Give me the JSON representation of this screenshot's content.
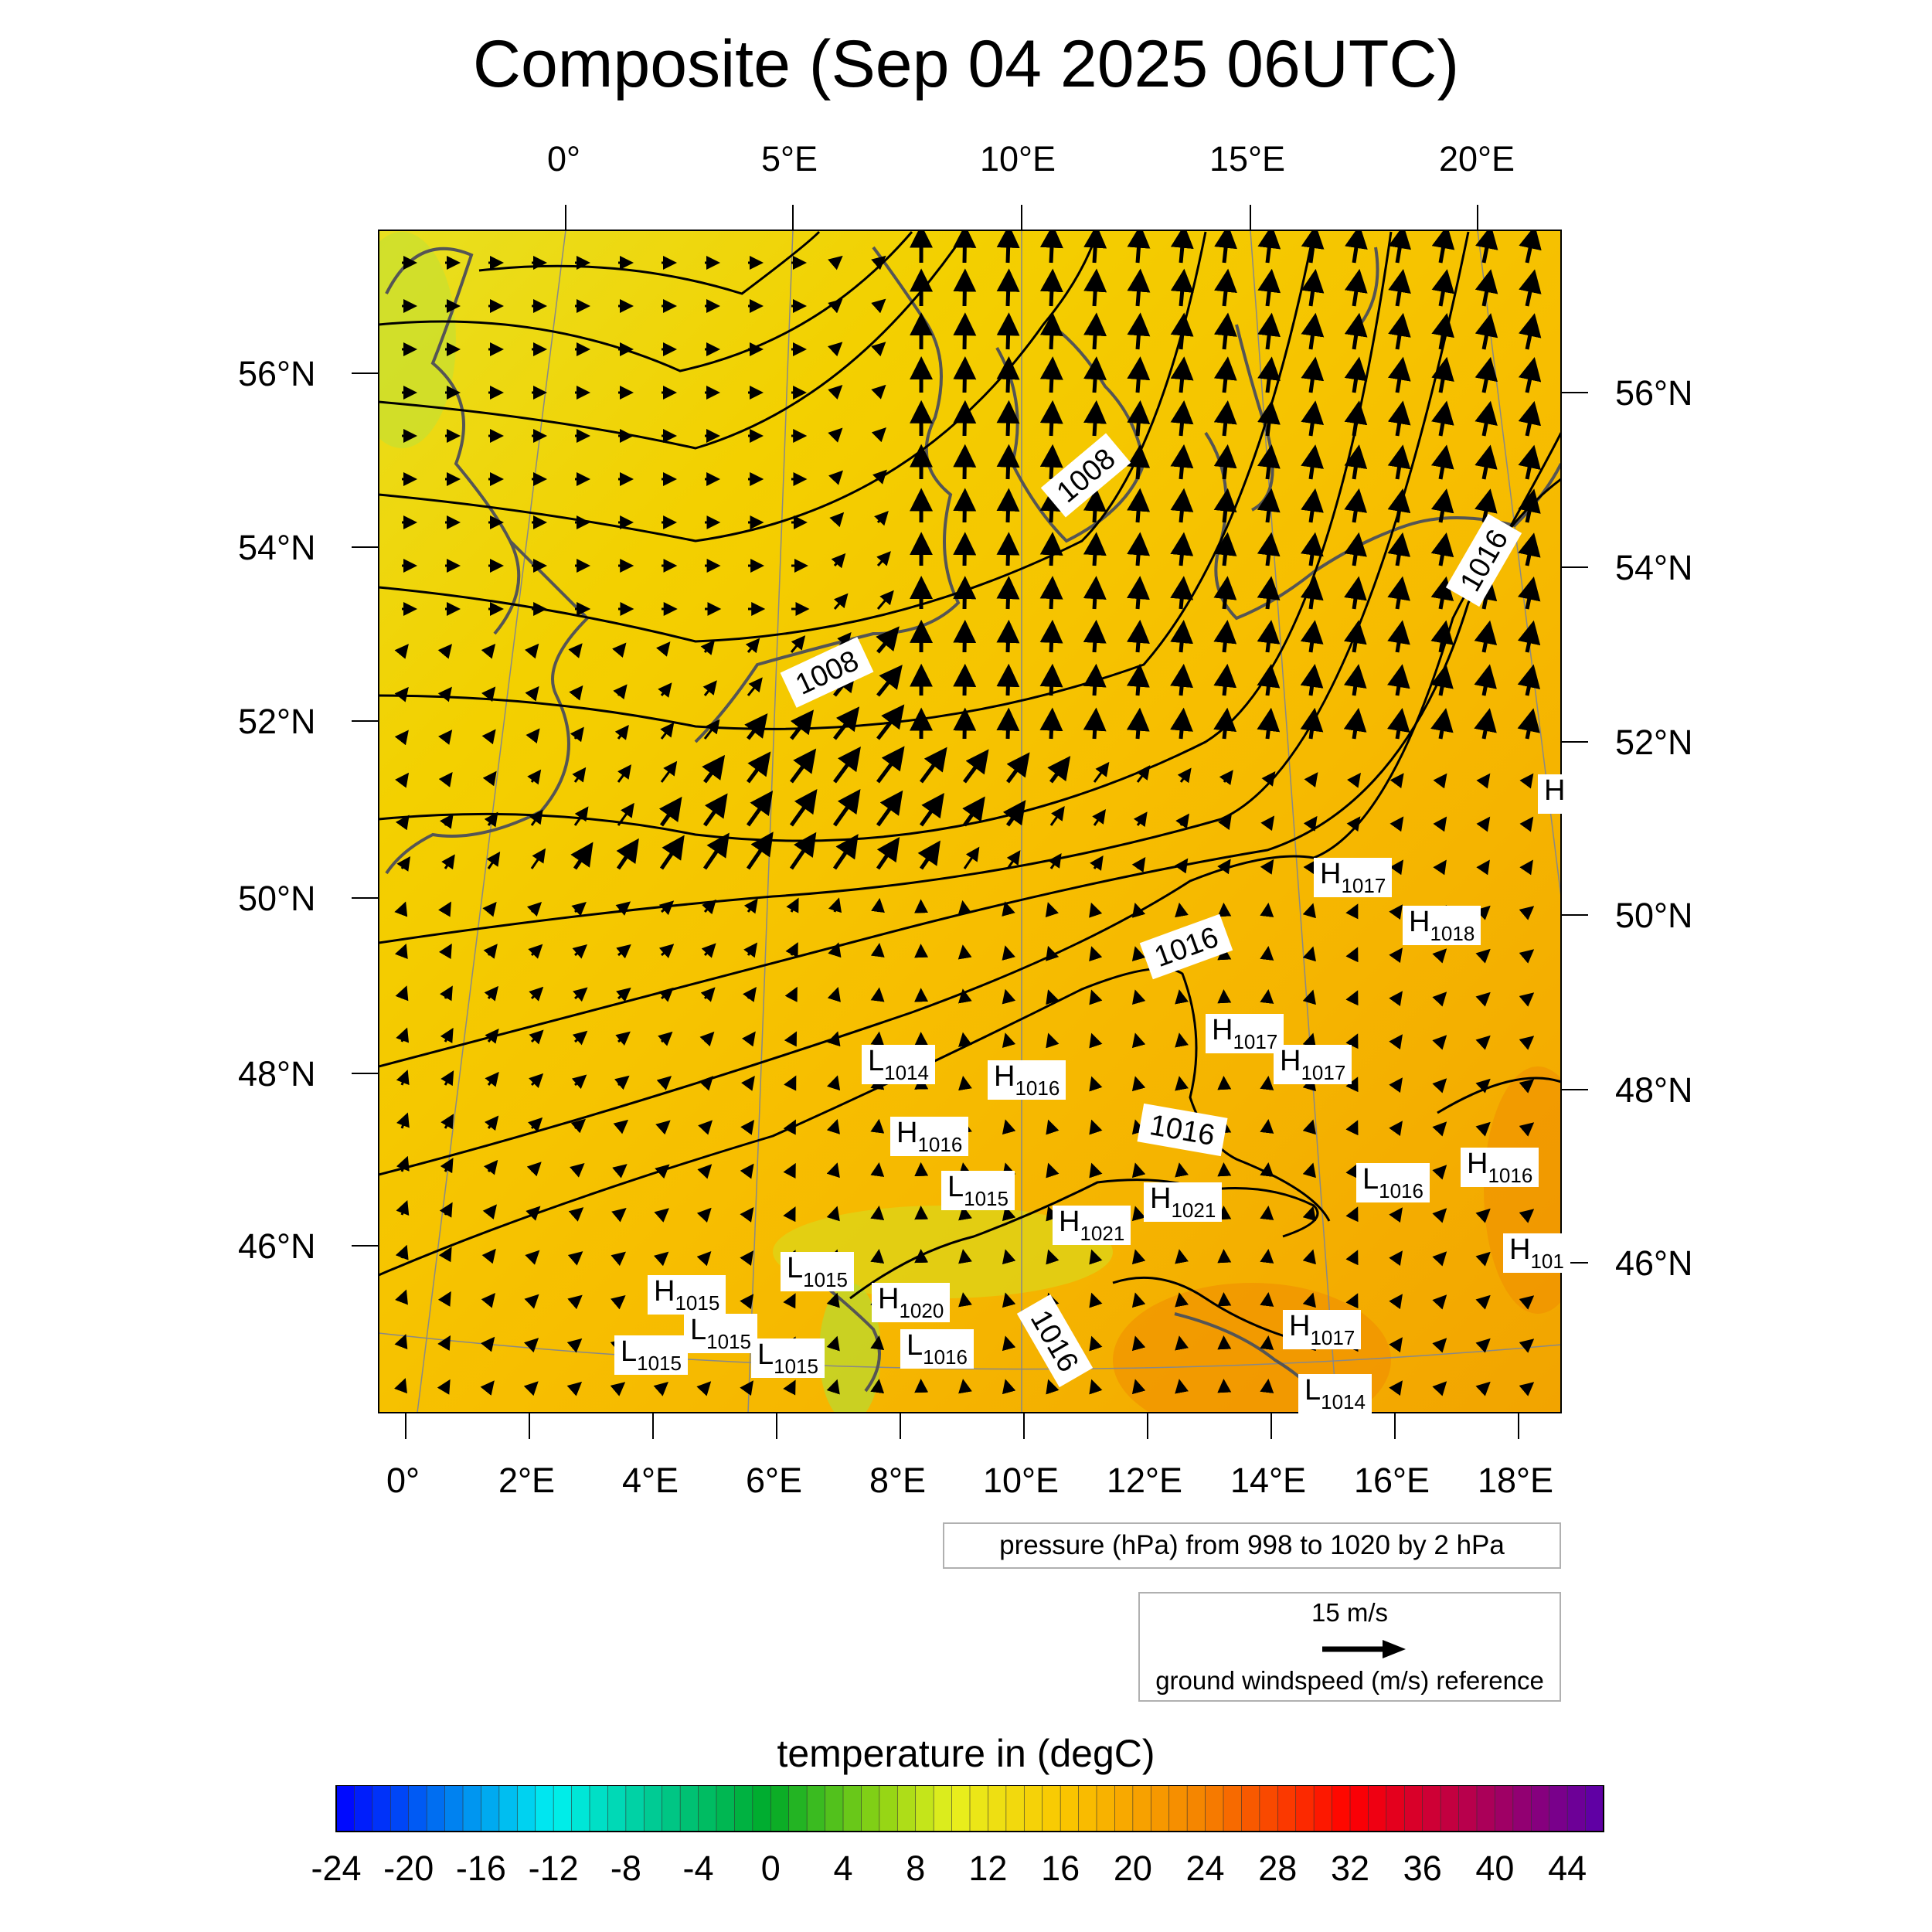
{
  "title": "Composite (Sep 04 2025 06UTC)",
  "top_lon_labels": [
    "0°",
    "5°E",
    "10°E",
    "15°E",
    "20°E"
  ],
  "bottom_lon_labels": [
    "0°",
    "2°E",
    "4°E",
    "6°E",
    "8°E",
    "10°E",
    "12°E",
    "14°E",
    "16°E",
    "18°E"
  ],
  "left_lat_labels": [
    "56°N",
    "54°N",
    "52°N",
    "50°N",
    "48°N",
    "46°N"
  ],
  "right_lat_labels": [
    "56°N",
    "54°N",
    "52°N",
    "50°N",
    "48°N",
    "46°N"
  ],
  "pressure_legend": "pressure (hPa) from 998 to 1020 by 2 hPa",
  "wind_legend": {
    "speed": "15 m/s",
    "caption": "ground windspeed (m/s) reference"
  },
  "colorbar": {
    "title": "temperature in (degC)",
    "labels": [
      "-24",
      "-20",
      "-16",
      "-12",
      "-8",
      "-4",
      "0",
      "4",
      "8",
      "12",
      "16",
      "20",
      "24",
      "28",
      "32",
      "36",
      "40",
      "44"
    ]
  },
  "colors": {
    "field_base": "#f6c000",
    "field_north": "#f3de10",
    "field_warm": "#f2a000",
    "coast": "#555555",
    "contour": "#000000"
  },
  "contour_labels": [
    "1008",
    "1008",
    "1016",
    "1016",
    "1016",
    "1016"
  ],
  "pressure_centers": [
    {
      "t": "H",
      "v": "1017"
    },
    {
      "t": "H",
      "v": "1018"
    },
    {
      "t": "H",
      "v": "1017"
    },
    {
      "t": "H",
      "v": "1017"
    },
    {
      "t": "L",
      "v": "1014"
    },
    {
      "t": "H",
      "v": "1016"
    },
    {
      "t": "H",
      "v": "1016"
    },
    {
      "t": "L",
      "v": "1015"
    },
    {
      "t": "H",
      "v": "1021"
    },
    {
      "t": "H",
      "v": "1021"
    },
    {
      "t": "L",
      "v": "1016"
    },
    {
      "t": "H",
      "v": "1016"
    },
    {
      "t": "H",
      "v": "101"
    },
    {
      "t": "L",
      "v": "1015"
    },
    {
      "t": "H",
      "v": "1015"
    },
    {
      "t": "L",
      "v": "1015"
    },
    {
      "t": "L",
      "v": "1015"
    },
    {
      "t": "L",
      "v": "1015"
    },
    {
      "t": "H",
      "v": "1020"
    },
    {
      "t": "L",
      "v": "1016"
    },
    {
      "t": "H",
      "v": "1017"
    },
    {
      "t": "L",
      "v": "1014"
    },
    {
      "t": "H",
      "v": ""
    }
  ]
}
